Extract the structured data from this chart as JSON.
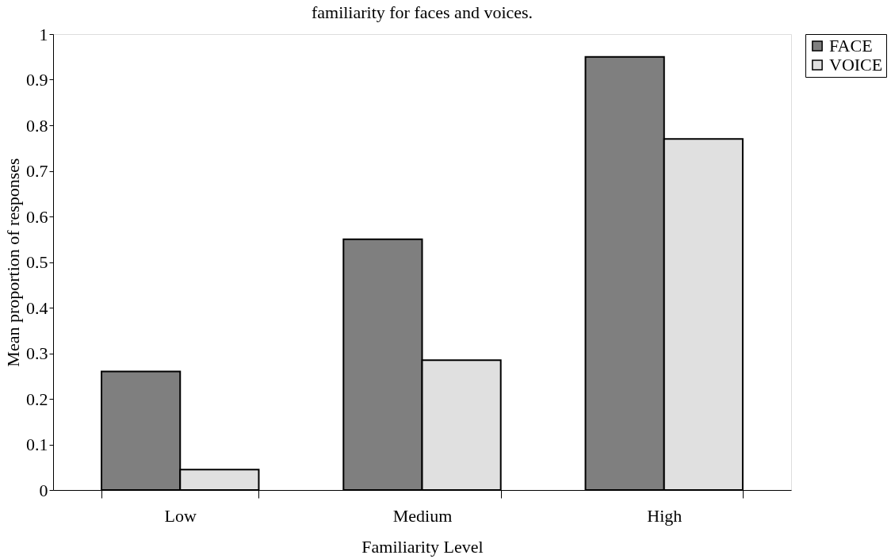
{
  "chart_data": {
    "type": "bar",
    "title": "familiarity for faces and voices.",
    "xlabel": "Familiarity Level",
    "ylabel": "Mean proportion of responses",
    "categories": [
      "Low",
      "Medium",
      "High"
    ],
    "series": [
      {
        "name": "FACE",
        "color": "#7f7f7f",
        "values": [
          0.26,
          0.55,
          0.95
        ]
      },
      {
        "name": "VOICE",
        "color": "#e0e0e0",
        "values": [
          0.045,
          0.285,
          0.77
        ]
      }
    ],
    "ylim": [
      0,
      1
    ],
    "yticks": [
      0,
      0.1,
      0.2,
      0.3,
      0.4,
      0.5,
      0.6,
      0.7,
      0.8,
      0.9,
      1
    ],
    "grid": false,
    "legend": "right"
  }
}
